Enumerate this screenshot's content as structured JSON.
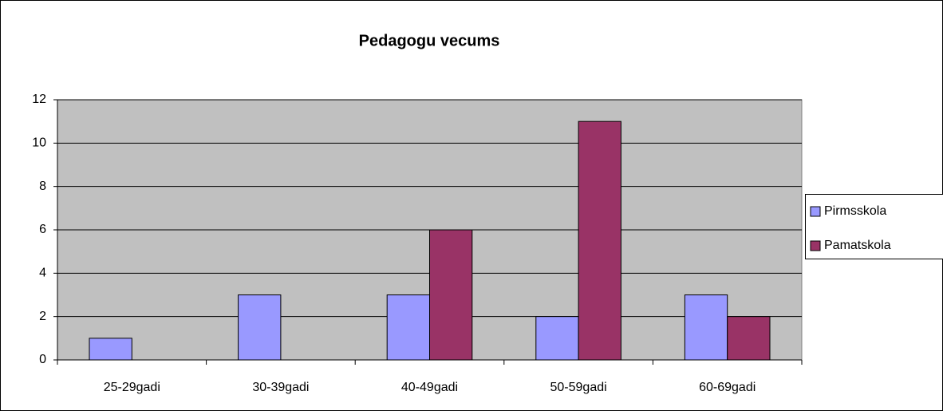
{
  "chart_data": {
    "type": "bar",
    "title": "Pedagogu vecums",
    "categories": [
      "25-29gadi",
      "30-39gadi",
      "40-49gadi",
      "50-59gadi",
      "60-69gadi"
    ],
    "series": [
      {
        "name": "Pirmsskola",
        "color": "#9999ff",
        "values": [
          1,
          3,
          3,
          2,
          3
        ]
      },
      {
        "name": "Pamatskola",
        "color": "#993366",
        "values": [
          0,
          0,
          6,
          11,
          2
        ]
      }
    ],
    "ylim": [
      0,
      12
    ],
    "yticks": [
      0,
      2,
      4,
      6,
      8,
      10,
      12
    ],
    "grid": true,
    "legend": "right"
  }
}
